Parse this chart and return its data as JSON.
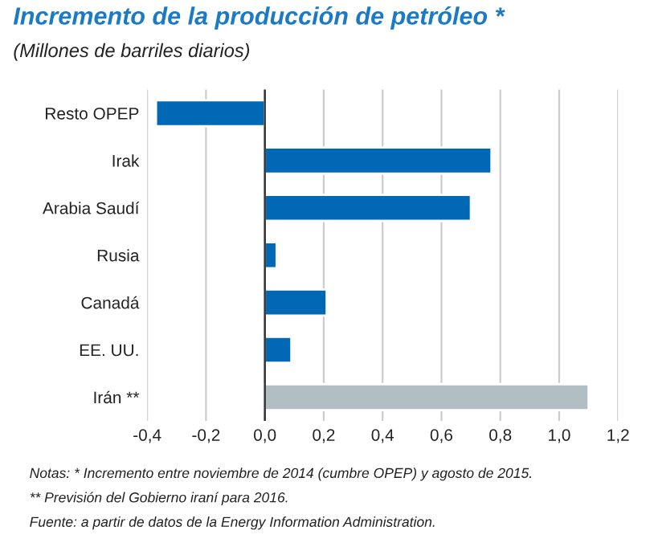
{
  "chart_data": {
    "type": "bar",
    "orientation": "horizontal",
    "title": "Incremento de la producción de petróleo *",
    "subtitle": "(Millones de barriles diarios)",
    "categories": [
      "Resto OPEP",
      "Irak",
      "Arabia Saudí",
      "Rusia",
      "Canadá",
      "EE. UU.",
      "Irán **"
    ],
    "values": [
      -0.37,
      0.77,
      0.7,
      0.04,
      0.21,
      0.09,
      1.1
    ],
    "colors": [
      "#0068b4",
      "#0068b4",
      "#0068b4",
      "#0068b4",
      "#0068b4",
      "#0068b4",
      "#b0bec3"
    ],
    "xlim": [
      -0.4,
      1.2
    ],
    "xticks": [
      {
        "value": -0.4,
        "label": "-0,4"
      },
      {
        "value": -0.2,
        "label": "-0,2"
      },
      {
        "value": 0,
        "label": "0,0"
      },
      {
        "value": 0.2,
        "label": "0,2"
      },
      {
        "value": 0.4,
        "label": "0,4"
      },
      {
        "value": 0.6,
        "label": "0,6"
      },
      {
        "value": 0.8,
        "label": "0,8"
      },
      {
        "value": 1.0,
        "label": "1,0"
      },
      {
        "value": 1.2,
        "label": "1,2"
      }
    ],
    "grid": "x",
    "ref_lines": [
      {
        "axis": "x",
        "value": 0,
        "color": "#333333"
      }
    ],
    "annotations": [
      "Notas: * Incremento entre noviembre de 2014 (cumbre OPEP) y agosto de 2015.",
      "** Previsión del Gobierno iraní para 2016.",
      "Fuente: a partir de datos de la Energy Information Administration."
    ]
  }
}
